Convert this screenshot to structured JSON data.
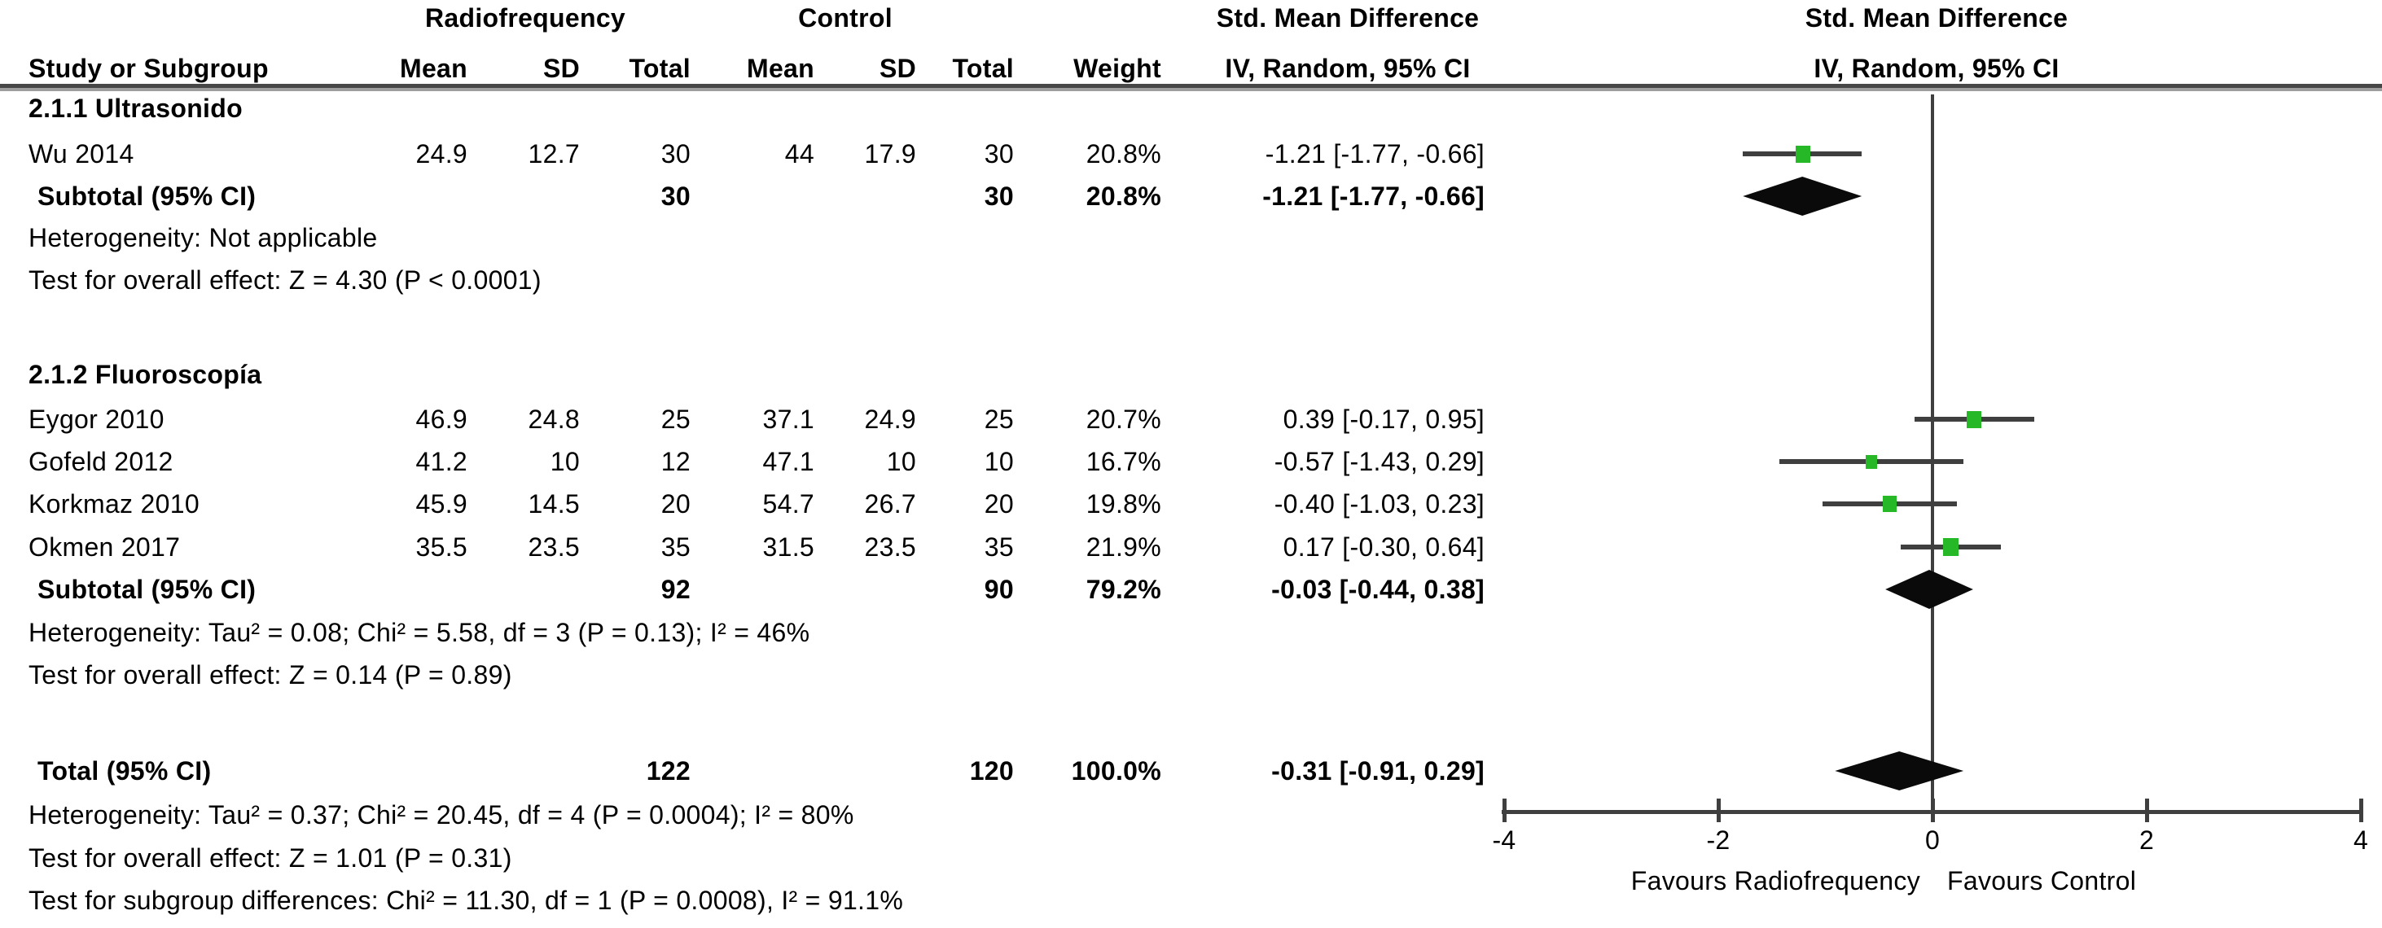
{
  "header": {
    "group1": "Radiofrequency",
    "group2": "Control",
    "smd_left_line1": "Std. Mean Difference",
    "smd_left_line2": "IV, Random, 95% CI",
    "smd_right_line1": "Std. Mean Difference",
    "smd_right_line2": "IV, Random, 95% CI",
    "cols": {
      "study": "Study or Subgroup",
      "mean1": "Mean",
      "sd1": "SD",
      "total1": "Total",
      "mean2": "Mean",
      "sd2": "SD",
      "total2": "Total",
      "weight": "Weight"
    }
  },
  "table": {
    "rows": [
      {
        "id": "g1",
        "type": "group",
        "label": "2.1.1 Ultrasonido"
      },
      {
        "id": "wu",
        "type": "study",
        "label": "Wu 2014",
        "cells": [
          "24.9",
          "12.7",
          "30",
          "44",
          "17.9",
          "30",
          "20.8%"
        ],
        "ci": "-1.21 [-1.77, -0.66]"
      },
      {
        "id": "sub1",
        "type": "subtotal",
        "label": "Subtotal (95% CI)",
        "cells": [
          "",
          "",
          "30",
          "",
          "",
          "30",
          "20.8%"
        ],
        "ci": "-1.21 [-1.77, -0.66]"
      },
      {
        "id": "het1",
        "type": "note",
        "label": "Heterogeneity: Not applicable"
      },
      {
        "id": "test1",
        "type": "note",
        "label": "Test for overall effect: Z = 4.30 (P < 0.0001)"
      },
      {
        "id": "g2",
        "type": "group",
        "label": "2.1.2 Fluoroscopía"
      },
      {
        "id": "eygor",
        "type": "study",
        "label": "Eygor 2010",
        "cells": [
          "46.9",
          "24.8",
          "25",
          "37.1",
          "24.9",
          "25",
          "20.7%"
        ],
        "ci": "0.39 [-0.17, 0.95]"
      },
      {
        "id": "gofeld",
        "type": "study",
        "label": "Gofeld 2012",
        "cells": [
          "41.2",
          "10",
          "12",
          "47.1",
          "10",
          "10",
          "16.7%"
        ],
        "ci": "-0.57 [-1.43, 0.29]"
      },
      {
        "id": "korkmaz",
        "type": "study",
        "label": "Korkmaz 2010",
        "cells": [
          "45.9",
          "14.5",
          "20",
          "54.7",
          "26.7",
          "20",
          "19.8%"
        ],
        "ci": "-0.40 [-1.03, 0.23]"
      },
      {
        "id": "okmen",
        "type": "study",
        "label": "Okmen 2017",
        "cells": [
          "35.5",
          "23.5",
          "35",
          "31.5",
          "23.5",
          "35",
          "21.9%"
        ],
        "ci": "0.17 [-0.30, 0.64]"
      },
      {
        "id": "sub2",
        "type": "subtotal",
        "label": "Subtotal (95% CI)",
        "cells": [
          "",
          "",
          "92",
          "",
          "",
          "90",
          "79.2%"
        ],
        "ci": "-0.03 [-0.44, 0.38]"
      },
      {
        "id": "het2",
        "type": "note",
        "label": "Heterogeneity: Tau² = 0.08; Chi² = 5.58, df = 3 (P = 0.13); I² = 46%"
      },
      {
        "id": "test2",
        "type": "note",
        "label": "Test for overall effect: Z = 0.14 (P = 0.89)"
      },
      {
        "id": "total",
        "type": "total",
        "label": "Total (95% CI)",
        "cells": [
          "",
          "",
          "122",
          "",
          "",
          "120",
          "100.0%"
        ],
        "ci": "-0.31 [-0.91, 0.29]"
      },
      {
        "id": "het3",
        "type": "note",
        "label": "Heterogeneity: Tau² = 0.37; Chi² = 20.45, df = 4 (P = 0.0004); I² = 80%"
      },
      {
        "id": "test3",
        "type": "note",
        "label": "Test for overall effect: Z = 1.01 (P = 0.31)"
      },
      {
        "id": "testsub",
        "type": "note",
        "label": "Test for subgroup differences: Chi² = 11.30, df = 1 (P = 0.0008), I² = 91.1%"
      }
    ]
  },
  "chart_data": {
    "type": "forest",
    "effect_measure": "Std. Mean Difference, IV, Random, 95% CI",
    "x_axis": {
      "min": -4,
      "max": 4,
      "ticks": [
        -4,
        -2,
        0,
        2,
        4
      ],
      "favours_left": "Favours Radiofrequency",
      "favours_right": "Favours Control"
    },
    "markers": [
      {
        "row": "wu",
        "kind": "square",
        "effect": -1.21,
        "low": -1.77,
        "high": -0.66,
        "weight": 20.8
      },
      {
        "row": "sub1",
        "kind": "diamond",
        "effect": -1.21,
        "low": -1.77,
        "high": -0.66
      },
      {
        "row": "eygor",
        "kind": "square",
        "effect": 0.39,
        "low": -0.17,
        "high": 0.95,
        "weight": 20.7
      },
      {
        "row": "gofeld",
        "kind": "square",
        "effect": -0.57,
        "low": -1.43,
        "high": 0.29,
        "weight": 16.7
      },
      {
        "row": "korkmaz",
        "kind": "square",
        "effect": -0.4,
        "low": -1.03,
        "high": 0.23,
        "weight": 19.8
      },
      {
        "row": "okmen",
        "kind": "square",
        "effect": 0.17,
        "low": -0.3,
        "high": 0.64,
        "weight": 21.9
      },
      {
        "row": "sub2",
        "kind": "diamond",
        "effect": -0.03,
        "low": -0.44,
        "high": 0.38
      },
      {
        "row": "total",
        "kind": "diamond",
        "effect": -0.31,
        "low": -0.91,
        "high": 0.29
      }
    ]
  },
  "colors": {
    "marker_green": "#26b826",
    "line_gray": "#3f3f3f",
    "diamond_black": "#0a0a0a"
  }
}
